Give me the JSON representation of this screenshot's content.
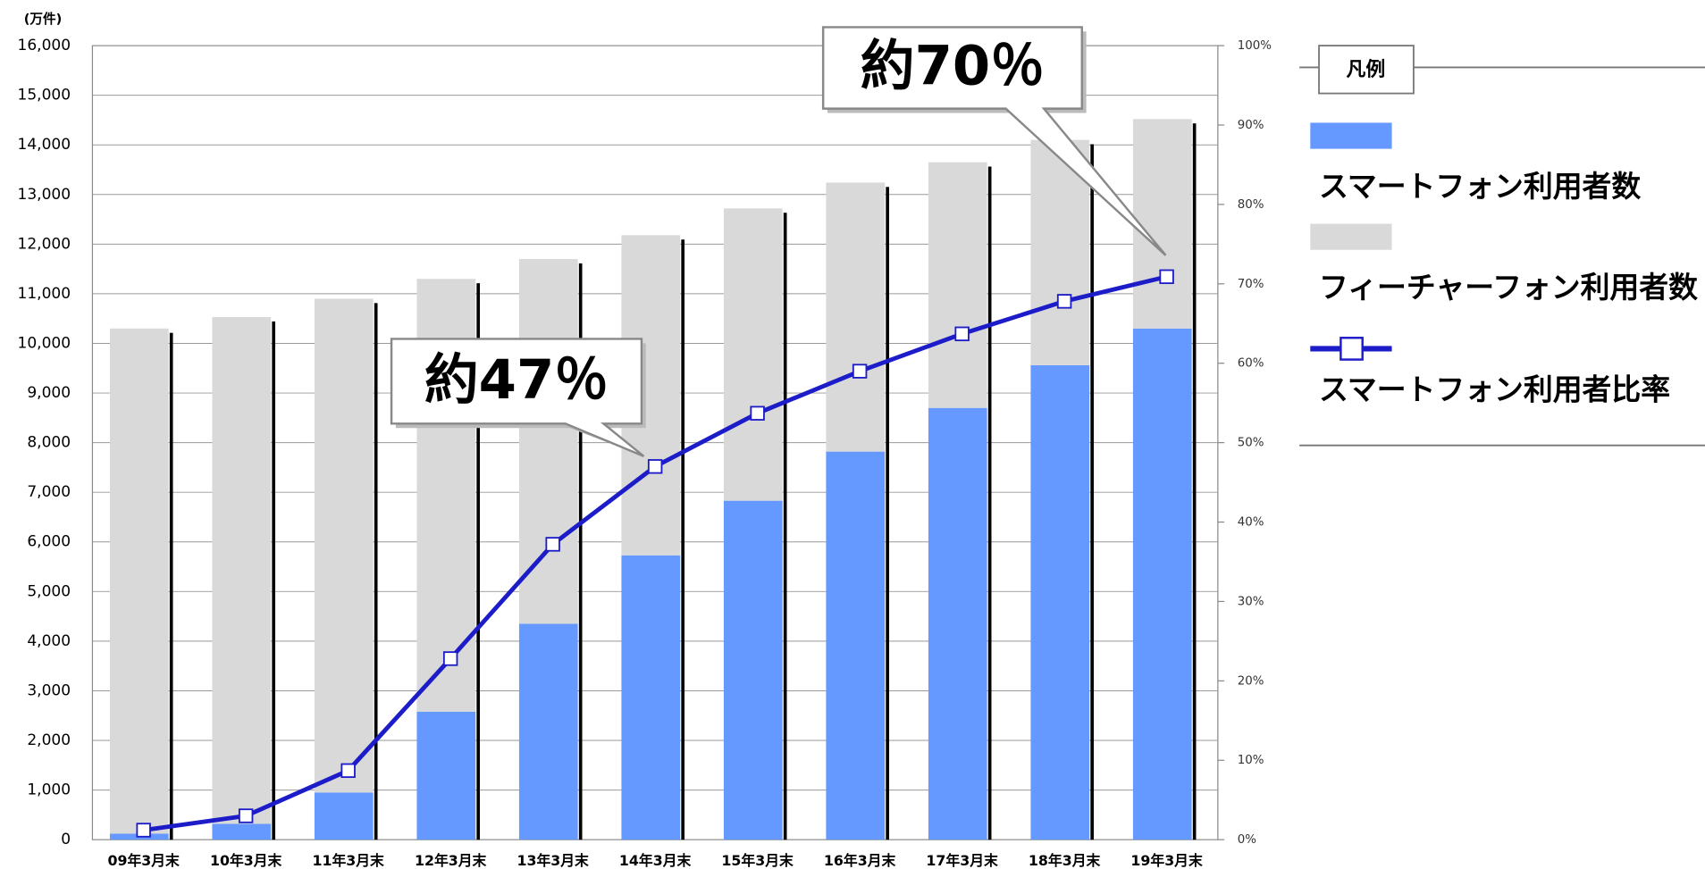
{
  "chart_data": {
    "type": "bar",
    "stacked": true,
    "y_unit_label": "(万件)",
    "categories": [
      "09年3月末",
      "10年3月末",
      "11年3月末",
      "12年3月末",
      "13年3月末",
      "14年3月末",
      "15年3月末",
      "16年3月末",
      "17年3月末",
      "18年3月末",
      "19年3月末"
    ],
    "series": [
      {
        "name": "スマートフォン利用者数",
        "color": "#6699ff",
        "values": [
          120,
          320,
          950,
          2580,
          4350,
          5730,
          6830,
          7820,
          8700,
          9560,
          10300
        ]
      },
      {
        "name": "フィーチャーフォン利用者数",
        "color": "#d9d9d9",
        "values": [
          10180,
          10210,
          9950,
          8720,
          7350,
          6450,
          5890,
          5420,
          4950,
          4540,
          4220
        ]
      },
      {
        "name": "スマートフォン利用者比率",
        "type": "line",
        "axis": "y2",
        "color": "#1c1cc8",
        "values": [
          1.2,
          3.0,
          8.7,
          22.8,
          37.2,
          47.0,
          53.7,
          59.0,
          63.7,
          67.8,
          70.9
        ]
      }
    ],
    "ylim": [
      0,
      16000
    ],
    "yticks": [
      0,
      {
        "value": 1000,
        "label": "1,000"
      },
      {
        "value": 2000,
        "label": "2,000"
      },
      {
        "value": 3000,
        "label": "3,000"
      },
      {
        "value": 4000,
        "label": "4,000"
      },
      {
        "value": 5000,
        "label": "5,000"
      },
      {
        "value": 6000,
        "label": "6,000"
      },
      {
        "value": 7000,
        "label": "7,000"
      },
      {
        "value": 8000,
        "label": "8,000"
      },
      {
        "value": 9000,
        "label": "9,000"
      },
      {
        "value": 10000,
        "label": "10,000"
      },
      {
        "value": 11000,
        "label": "11,000"
      },
      {
        "value": 12000,
        "label": "12,000"
      },
      {
        "value": 13000,
        "label": "13,000"
      },
      {
        "value": 14000,
        "label": "14,000"
      },
      {
        "value": 15000,
        "label": "15,000"
      },
      {
        "value": 16000,
        "label": "16,000"
      }
    ],
    "y2lim": [
      0,
      100
    ],
    "y2ticks": [
      {
        "value": 0,
        "label": "0%"
      },
      {
        "value": 10,
        "label": "10%"
      },
      {
        "value": 20,
        "label": "20%"
      },
      {
        "value": 30,
        "label": "30%"
      },
      {
        "value": 40,
        "label": "40%"
      },
      {
        "value": 50,
        "label": "50%"
      },
      {
        "value": 60,
        "label": "60%"
      },
      {
        "value": 70,
        "label": "70%"
      },
      {
        "value": 80,
        "label": "80%"
      },
      {
        "value": 90,
        "label": "90%"
      },
      {
        "value": 100,
        "label": "100%"
      }
    ],
    "grid": true,
    "legend_title": "凡例",
    "legend_position": "right",
    "annotations": [
      {
        "text": "約70％"
      },
      {
        "text": "約47％"
      }
    ]
  }
}
